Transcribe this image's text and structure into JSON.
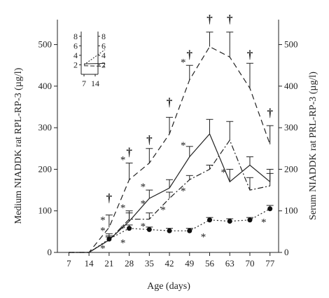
{
  "chart_data": {
    "type": "line",
    "xlabel": "Age (days)",
    "ylabel_left": "Medium NIADDK rat RPL-RP-3 (µg/l)",
    "ylabel_right": "Serum NIADDK rat PRL-RP-3 (µg/l)",
    "x": [
      7,
      14,
      21,
      28,
      35,
      42,
      49,
      56,
      63,
      70,
      77
    ],
    "x_ticks": [
      "7",
      "14",
      "21",
      "28",
      "35",
      "42",
      "49",
      "56",
      "63",
      "70",
      "77"
    ],
    "y_ticks": [
      "0",
      "100",
      "200",
      "300",
      "400",
      "500"
    ],
    "y_right_ticks": [
      "0",
      "100",
      "200",
      "300",
      "400",
      "500"
    ],
    "ylim": [
      0,
      560
    ],
    "xlim": [
      3,
      80
    ],
    "series": [
      {
        "style": "dashed",
        "values": [
          0,
          0,
          60,
          175,
          215,
          285,
          415,
          495,
          470,
          395,
          260
        ],
        "err": [
          0,
          0,
          30,
          40,
          35,
          40,
          35,
          35,
          60,
          60,
          45
        ]
      },
      {
        "style": "solid",
        "values": [
          0,
          0,
          30,
          75,
          130,
          155,
          230,
          285,
          170,
          210,
          170
        ],
        "err": [
          0,
          0,
          15,
          25,
          20,
          20,
          25,
          35,
          30,
          20,
          30
        ]
      },
      {
        "style": "dashdot",
        "values": [
          0,
          0,
          30,
          80,
          80,
          130,
          175,
          200,
          270,
          150,
          160
        ],
        "err": [
          0,
          0,
          10,
          15,
          15,
          15,
          10,
          10,
          45,
          30,
          30
        ]
      },
      {
        "style": "dotted",
        "values": [
          0,
          0,
          32,
          58,
          55,
          52,
          52,
          78,
          75,
          78,
          105
        ],
        "err": [
          0,
          0,
          5,
          8,
          6,
          6,
          6,
          6,
          6,
          6,
          8
        ]
      }
    ],
    "markers": [
      {
        "x": 21,
        "y": 80,
        "symbol": "*"
      },
      {
        "x": 21,
        "y": 115,
        "symbol": "†"
      },
      {
        "x": 21,
        "y": 55,
        "symbol": "*"
      },
      {
        "x": 21,
        "y": 12,
        "symbol": "*"
      },
      {
        "x": 28,
        "y": 225,
        "symbol": "*"
      },
      {
        "x": 28,
        "y": 225,
        "symbol": "†"
      },
      {
        "x": 28,
        "y": 110,
        "symbol": "*"
      },
      {
        "x": 28,
        "y": 60,
        "symbol": "*"
      },
      {
        "x": 28,
        "y": 25,
        "symbol": "*"
      },
      {
        "x": 35,
        "y": 255,
        "symbol": "†"
      },
      {
        "x": 35,
        "y": 160,
        "symbol": "*"
      },
      {
        "x": 35,
        "y": 120,
        "symbol": "*"
      },
      {
        "x": 35,
        "y": 65,
        "symbol": "*"
      },
      {
        "x": 42,
        "y": 345,
        "symbol": "†"
      },
      {
        "x": 42,
        "y": 105,
        "symbol": "*"
      },
      {
        "x": 49,
        "y": 460,
        "symbol": "*"
      },
      {
        "x": 49,
        "y": 460,
        "symbol": "†"
      },
      {
        "x": 49,
        "y": 260,
        "symbol": "*"
      },
      {
        "x": 49,
        "y": 150,
        "symbol": "*"
      },
      {
        "x": 56,
        "y": 545,
        "symbol": "†"
      },
      {
        "x": 56,
        "y": 40,
        "symbol": "*"
      },
      {
        "x": 63,
        "y": 545,
        "symbol": "†"
      },
      {
        "x": 63,
        "y": 195,
        "symbol": "*"
      },
      {
        "x": 70,
        "y": 460,
        "symbol": "†"
      },
      {
        "x": 77,
        "y": 320,
        "symbol": "†"
      },
      {
        "x": 77,
        "y": 75,
        "symbol": "*"
      }
    ],
    "inset": {
      "x_ticks": [
        "7",
        "14"
      ],
      "y_ticks": [
        "2",
        "4",
        "6",
        "8"
      ],
      "y_right_ticks": [
        "2",
        "4",
        "6",
        "8"
      ],
      "unit": "(µg/l)"
    }
  }
}
